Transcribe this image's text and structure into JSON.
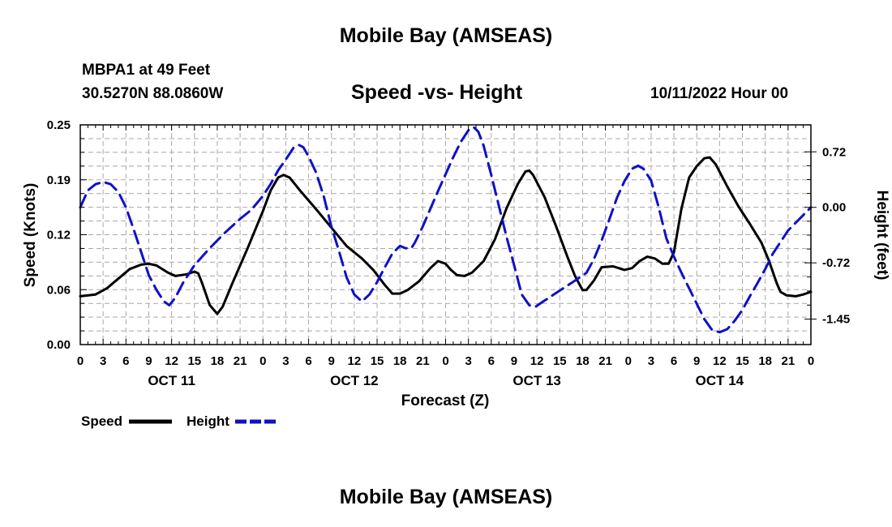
{
  "header": {
    "title": "Mobile Bay (AMSEAS)",
    "station": "MBPA1 at 49 Feet",
    "coords": "30.5270N  88.0860W",
    "subtitle": "Speed -vs- Height",
    "timestamp": "10/11/2022 Hour 00"
  },
  "footer": {
    "title": "Mobile Bay (AMSEAS)"
  },
  "colors": {
    "speed": "#000000",
    "height": "#1010c8",
    "grid": "#a8a8a8"
  },
  "chart_data": {
    "type": "line",
    "title": "Speed -vs- Height",
    "xlabel": "Forecast (Z)",
    "ylabel": "Speed (Knots)",
    "y2label": "Height (feet)",
    "xlim": [
      0,
      96
    ],
    "ylim": [
      0,
      0.25
    ],
    "y2lim": [
      -1.78,
      1.07
    ],
    "x_ticks": [
      0,
      3,
      6,
      9,
      12,
      15,
      18,
      21,
      24,
      27,
      30,
      33,
      36,
      39,
      42,
      45,
      48,
      51,
      54,
      57,
      60,
      63,
      66,
      69,
      72,
      75,
      78,
      81,
      84,
      87,
      90,
      93,
      96
    ],
    "x_tick_labels": [
      "0",
      "3",
      "6",
      "9",
      "12",
      "15",
      "18",
      "21",
      "0",
      "3",
      "6",
      "9",
      "12",
      "15",
      "18",
      "21",
      "0",
      "3",
      "6",
      "9",
      "12",
      "15",
      "18",
      "21",
      "0",
      "3",
      "6",
      "9",
      "12",
      "15",
      "18",
      "21",
      "0"
    ],
    "date_labels": [
      {
        "x": 12,
        "label": "OCT 11"
      },
      {
        "x": 36,
        "label": "OCT 12"
      },
      {
        "x": 60,
        "label": "OCT 13"
      },
      {
        "x": 84,
        "label": "OCT 14"
      }
    ],
    "y_ticks": [
      0.0,
      0.06,
      0.12,
      0.19,
      0.25
    ],
    "y_tick_labels": [
      "0.00",
      "0.06",
      "0.12",
      "0.19",
      "0.25"
    ],
    "y2_ticks": [
      0.72,
      0.0,
      -0.72,
      -1.45
    ],
    "y2_tick_labels": [
      "0.72",
      "0.00",
      "-0.72",
      "-1.45"
    ],
    "series": [
      {
        "name": "Speed",
        "axis": "left",
        "style": "solid",
        "points": [
          [
            0,
            0.055
          ],
          [
            2,
            0.057
          ],
          [
            3.5,
            0.064
          ],
          [
            5,
            0.075
          ],
          [
            6.5,
            0.086
          ],
          [
            8,
            0.091
          ],
          [
            9,
            0.092
          ],
          [
            10,
            0.09
          ],
          [
            11.5,
            0.082
          ],
          [
            12.5,
            0.078
          ],
          [
            14,
            0.08
          ],
          [
            15,
            0.083
          ],
          [
            15.5,
            0.081
          ],
          [
            16,
            0.07
          ],
          [
            17,
            0.045
          ],
          [
            18,
            0.035
          ],
          [
            18.7,
            0.043
          ],
          [
            20,
            0.07
          ],
          [
            22,
            0.11
          ],
          [
            24,
            0.152
          ],
          [
            25,
            0.175
          ],
          [
            26,
            0.19
          ],
          [
            26.7,
            0.193
          ],
          [
            27.5,
            0.19
          ],
          [
            29,
            0.174
          ],
          [
            31,
            0.154
          ],
          [
            33,
            0.133
          ],
          [
            35,
            0.112
          ],
          [
            37,
            0.098
          ],
          [
            38.5,
            0.085
          ],
          [
            40,
            0.068
          ],
          [
            41,
            0.058
          ],
          [
            42,
            0.058
          ],
          [
            43,
            0.062
          ],
          [
            44.5,
            0.072
          ],
          [
            46,
            0.087
          ],
          [
            47,
            0.095
          ],
          [
            48,
            0.092
          ],
          [
            48.7,
            0.085
          ],
          [
            49.5,
            0.079
          ],
          [
            50.5,
            0.078
          ],
          [
            51.5,
            0.082
          ],
          [
            53,
            0.095
          ],
          [
            54.5,
            0.12
          ],
          [
            56,
            0.155
          ],
          [
            57.5,
            0.183
          ],
          [
            58.5,
            0.197
          ],
          [
            59,
            0.198
          ],
          [
            59.5,
            0.193
          ],
          [
            61,
            0.168
          ],
          [
            62.5,
            0.135
          ],
          [
            64,
            0.1
          ],
          [
            65,
            0.078
          ],
          [
            66,
            0.062
          ],
          [
            66.5,
            0.062
          ],
          [
            67.5,
            0.073
          ],
          [
            68.5,
            0.088
          ],
          [
            70,
            0.089
          ],
          [
            71.5,
            0.085
          ],
          [
            72.5,
            0.087
          ],
          [
            73.5,
            0.095
          ],
          [
            74.5,
            0.1
          ],
          [
            75.5,
            0.098
          ],
          [
            76.5,
            0.092
          ],
          [
            77.3,
            0.092
          ],
          [
            78,
            0.105
          ],
          [
            79,
            0.155
          ],
          [
            80,
            0.19
          ],
          [
            81,
            0.203
          ],
          [
            82,
            0.212
          ],
          [
            82.7,
            0.213
          ],
          [
            83.5,
            0.205
          ],
          [
            85,
            0.18
          ],
          [
            86.5,
            0.157
          ],
          [
            88,
            0.137
          ],
          [
            89.5,
            0.116
          ],
          [
            90.5,
            0.095
          ],
          [
            91.5,
            0.07
          ],
          [
            92,
            0.06
          ],
          [
            92.8,
            0.056
          ],
          [
            94,
            0.055
          ],
          [
            95,
            0.057
          ],
          [
            96,
            0.06
          ]
        ]
      },
      {
        "name": "Height",
        "axis": "right",
        "style": "dashed",
        "points": [
          [
            0,
            0.0
          ],
          [
            1,
            0.22
          ],
          [
            2,
            0.3
          ],
          [
            3,
            0.33
          ],
          [
            4,
            0.3
          ],
          [
            5,
            0.2
          ],
          [
            6,
            0.0
          ],
          [
            7,
            -0.28
          ],
          [
            8,
            -0.58
          ],
          [
            9,
            -0.88
          ],
          [
            10,
            -1.07
          ],
          [
            11,
            -1.22
          ],
          [
            11.7,
            -1.27
          ],
          [
            12.5,
            -1.17
          ],
          [
            13.5,
            -0.98
          ],
          [
            15,
            -0.75
          ],
          [
            17,
            -0.53
          ],
          [
            19,
            -0.33
          ],
          [
            21,
            -0.15
          ],
          [
            22.5,
            -0.03
          ],
          [
            24,
            0.15
          ],
          [
            25,
            0.3
          ],
          [
            26,
            0.48
          ],
          [
            27,
            0.62
          ],
          [
            28,
            0.77
          ],
          [
            28.7,
            0.81
          ],
          [
            29.3,
            0.78
          ],
          [
            30,
            0.66
          ],
          [
            31,
            0.45
          ],
          [
            32,
            0.14
          ],
          [
            33,
            -0.25
          ],
          [
            34,
            -0.57
          ],
          [
            35,
            -0.91
          ],
          [
            36,
            -1.13
          ],
          [
            37,
            -1.22
          ],
          [
            38,
            -1.13
          ],
          [
            39,
            -0.97
          ],
          [
            40,
            -0.78
          ],
          [
            41,
            -0.6
          ],
          [
            42,
            -0.5
          ],
          [
            42.7,
            -0.53
          ],
          [
            43.5,
            -0.53
          ],
          [
            44,
            -0.45
          ],
          [
            45,
            -0.25
          ],
          [
            46,
            -0.02
          ],
          [
            47,
            0.21
          ],
          [
            48,
            0.43
          ],
          [
            49,
            0.65
          ],
          [
            50,
            0.85
          ],
          [
            51,
            1.0
          ],
          [
            51.7,
            1.04
          ],
          [
            52.3,
            0.98
          ],
          [
            53,
            0.8
          ],
          [
            54,
            0.42
          ],
          [
            55,
            0.02
          ],
          [
            56,
            -0.38
          ],
          [
            57,
            -0.75
          ],
          [
            58,
            -1.13
          ],
          [
            59,
            -1.27
          ],
          [
            59.8,
            -1.29
          ],
          [
            61,
            -1.21
          ],
          [
            63,
            -1.08
          ],
          [
            65,
            -0.95
          ],
          [
            66.5,
            -0.85
          ],
          [
            67.5,
            -0.67
          ],
          [
            68.5,
            -0.43
          ],
          [
            69.5,
            -0.16
          ],
          [
            70.5,
            0.12
          ],
          [
            71.5,
            0.34
          ],
          [
            72.5,
            0.5
          ],
          [
            73.3,
            0.54
          ],
          [
            74,
            0.5
          ],
          [
            75,
            0.35
          ],
          [
            76,
            0.0
          ],
          [
            77,
            -0.4
          ],
          [
            78,
            -0.64
          ],
          [
            79,
            -0.85
          ],
          [
            80,
            -1.05
          ],
          [
            81,
            -1.25
          ],
          [
            82,
            -1.45
          ],
          [
            83,
            -1.59
          ],
          [
            84,
            -1.62
          ],
          [
            85,
            -1.58
          ],
          [
            86,
            -1.47
          ],
          [
            87,
            -1.33
          ],
          [
            88,
            -1.15
          ],
          [
            89,
            -0.98
          ],
          [
            90,
            -0.8
          ],
          [
            91,
            -0.6
          ],
          [
            92,
            -0.45
          ],
          [
            93,
            -0.3
          ],
          [
            94,
            -0.2
          ],
          [
            95,
            -0.1
          ],
          [
            96,
            0.0
          ]
        ]
      }
    ],
    "legend": [
      {
        "label": "Speed",
        "color": "#000000",
        "style": "solid"
      },
      {
        "label": "Height",
        "color": "#1010c8",
        "style": "dashed"
      }
    ]
  }
}
